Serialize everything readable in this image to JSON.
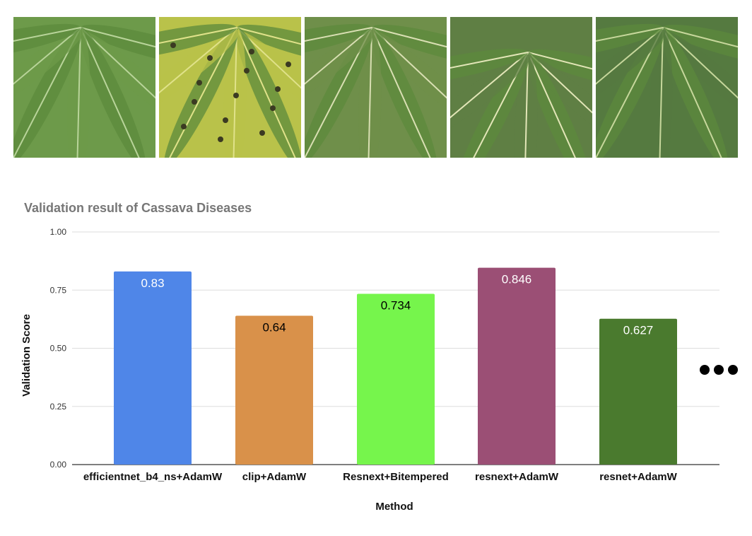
{
  "photos": [
    {
      "name": "healthy-cassava-leaf-photo",
      "base": "#6d9a4a",
      "vein": "#b9d49a"
    },
    {
      "name": "yellow-spotted-cassava-leaf-photo",
      "base": "#b9c24a",
      "vein": "#e0e28a"
    },
    {
      "name": "mosaic-cassava-leaf-photo-1",
      "base": "#6f8f4a",
      "vein": "#d9dfb3"
    },
    {
      "name": "mosaic-cassava-leaf-photo-2",
      "base": "#5f7f44",
      "vein": "#e3e6b8"
    },
    {
      "name": "streaked-cassava-leaf-photo",
      "base": "#557a40",
      "vein": "#c7d79c"
    }
  ],
  "chart_data": {
    "type": "bar",
    "title": "Validation result of Cassava Diseases",
    "xlabel": "Method",
    "ylabel": "Validation Score",
    "ylim": [
      0,
      1
    ],
    "yticks": [
      "0.00",
      "0.25",
      "0.50",
      "0.75",
      "1.00"
    ],
    "grid": true,
    "categories": [
      "efficientnet_b4_ns+AdamW",
      "clip+AdamW",
      "Resnext+Bitempered",
      "resnext+AdamW",
      "resnet+AdamW"
    ],
    "values": [
      0.83,
      0.64,
      0.734,
      0.846,
      0.627
    ],
    "data_labels": [
      "0.83",
      "0.64",
      "0.734",
      "0.846",
      "0.627"
    ],
    "colors": [
      "#4f86e8",
      "#d9914a",
      "#76f54c",
      "#9b4f75",
      "#4a7a2e"
    ],
    "label_colors": [
      "#ffffff",
      "#000000",
      "#000000",
      "#ffffff",
      "#ffffff"
    ]
  },
  "continuation_indicator": "ellipsis-dots"
}
